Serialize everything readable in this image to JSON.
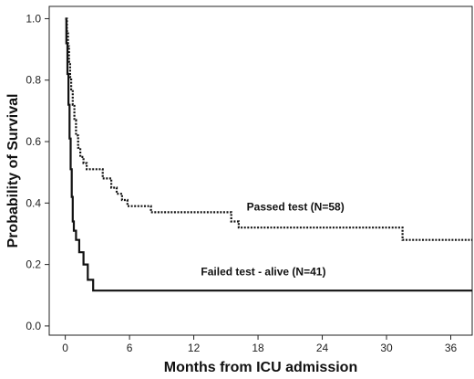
{
  "chart_data": {
    "type": "line",
    "step": true,
    "title": "",
    "xlabel": "Months from ICU admission",
    "ylabel": "Probability of Survival",
    "xlim": [
      -1.5,
      38
    ],
    "ylim": [
      -0.03,
      1.04
    ],
    "x_ticks": [
      0,
      6,
      12,
      18,
      24,
      30,
      36
    ],
    "y_ticks": [
      0.0,
      0.2,
      0.4,
      0.6,
      0.8,
      1.0
    ],
    "y_tick_labels": [
      "0.0",
      "0.2",
      "0.4",
      "0.6",
      "0.8",
      "1.0"
    ],
    "grid": false,
    "series": [
      {
        "name": "Passed test (N=58)",
        "line_style": "dotted",
        "color": "#111111",
        "x": [
          0,
          0.15,
          0.25,
          0.35,
          0.45,
          0.55,
          0.7,
          0.85,
          1.0,
          1.2,
          1.4,
          1.7,
          2.0,
          2.4,
          2.8,
          3.5,
          4.3,
          4.8,
          5.3,
          5.8,
          6.4,
          7.2,
          8.0,
          15.5,
          16.2,
          31.5,
          38
        ],
        "y": [
          1.0,
          0.96,
          0.91,
          0.86,
          0.81,
          0.77,
          0.72,
          0.67,
          0.62,
          0.58,
          0.55,
          0.53,
          0.51,
          0.51,
          0.51,
          0.48,
          0.45,
          0.43,
          0.41,
          0.39,
          0.39,
          0.39,
          0.37,
          0.34,
          0.32,
          0.28,
          0.28
        ]
      },
      {
        "name": "Failed test - alive (N=41)",
        "line_style": "solid",
        "color": "#111111",
        "x": [
          0,
          0.1,
          0.2,
          0.3,
          0.4,
          0.5,
          0.6,
          0.7,
          0.8,
          1.0,
          1.3,
          1.7,
          2.1,
          2.6,
          38
        ],
        "y": [
          1.0,
          0.92,
          0.82,
          0.72,
          0.61,
          0.51,
          0.42,
          0.34,
          0.31,
          0.28,
          0.24,
          0.2,
          0.15,
          0.115,
          0.115
        ]
      }
    ],
    "annotations": [
      {
        "text": "Passed test (N=58)",
        "x": 21.5,
        "y": 0.375
      },
      {
        "text": "Failed test - alive (N=41)",
        "x": 18.5,
        "y": 0.165
      }
    ]
  }
}
